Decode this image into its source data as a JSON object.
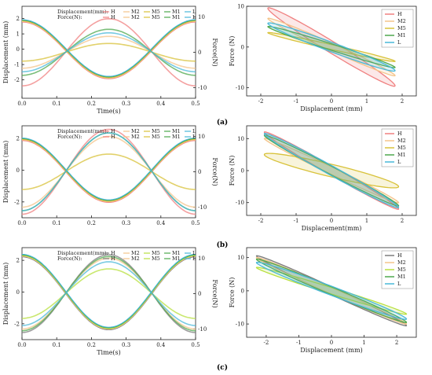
{
  "chart_data": [
    {
      "id": "a-time",
      "panel": "(a)",
      "type": "line",
      "xlabel": "Time(s)",
      "ylabel": "Displacement (mm)",
      "ylabel_right": "Force(N)",
      "xlim": [
        0,
        0.5
      ],
      "ylim": [
        -3.2,
        2.8
      ],
      "ylim_right": [
        -13,
        13
      ],
      "xticks": [
        "0.0",
        "0.1",
        "0.2",
        "0.3",
        "0.4",
        "0.5"
      ],
      "yticks": [
        "-2",
        "-1",
        "0",
        "1",
        "2"
      ],
      "yticks_right": [
        "-10",
        "0",
        "10"
      ],
      "legend": {
        "displacement_label": "Displacement(mm):",
        "force_label": "Force(N):",
        "names": [
          "H",
          "M2",
          "M5",
          "M1",
          "L"
        ]
      },
      "displacement_amplitude_mm": [
        1.85,
        1.85,
        1.85,
        1.85,
        1.85
      ],
      "force_amplitude_N": [
        9.5,
        4.5,
        2.5,
        6.5,
        5.5
      ],
      "series_colors": [
        "#f08080",
        "#f4c48a",
        "#d8c23a",
        "#4ea84e",
        "#49b8d8"
      ]
    },
    {
      "id": "a-hyst",
      "panel": "(a)",
      "type": "scatter",
      "xlabel": "Displacement (mm)",
      "ylabel": "Force (N)",
      "xlim": [
        -2.4,
        2.4
      ],
      "ylim": [
        -12,
        10
      ],
      "xticks": [
        "-2",
        "-1",
        "0",
        "1",
        "2"
      ],
      "yticks": [
        "-10",
        "0",
        "10"
      ],
      "legend": [
        "H",
        "M2",
        "M5",
        "M1",
        "L"
      ],
      "loop_amplitude_x_mm": [
        1.8,
        1.8,
        1.8,
        1.8,
        1.8
      ],
      "loop_amplitude_y_N": [
        9.5,
        7,
        3.5,
        5,
        5.8
      ],
      "loop_width_N": [
        1.6,
        1.0,
        0.6,
        0.8,
        1.2
      ],
      "series_colors": [
        "#f08080",
        "#f4c48a",
        "#d8c23a",
        "#4ea84e",
        "#49b8d8"
      ]
    },
    {
      "id": "b-time",
      "panel": "(b)",
      "type": "line",
      "xlabel": "",
      "ylabel": "Displacement (mm)",
      "ylabel_right": "Force(N)",
      "xlim": [
        0,
        0.5
      ],
      "ylim": [
        -3.0,
        2.8
      ],
      "ylim_right": [
        -13,
        13
      ],
      "xticks": [
        "0.0",
        "0.1",
        "0.2",
        "0.3",
        "0.4",
        "0.5"
      ],
      "yticks": [
        "-2",
        "0",
        "2"
      ],
      "yticks_right": [
        "-10",
        "0",
        "10"
      ],
      "legend": {
        "displacement_label": "Displacement(mm):",
        "force_label": "Force(N):",
        "names": [
          "H",
          "M2",
          "M5",
          "M1",
          "L"
        ]
      },
      "displacement_amplitude_mm": [
        1.95,
        1.95,
        1.95,
        1.95,
        1.95
      ],
      "force_amplitude_N": [
        12,
        10,
        5,
        11,
        11
      ],
      "series_colors": [
        "#f08080",
        "#f4c48a",
        "#d8c23a",
        "#4ea84e",
        "#49b8d8"
      ]
    },
    {
      "id": "b-hyst",
      "panel": "(b)",
      "type": "scatter",
      "xlabel": "Displacement(mm)",
      "ylabel": "Force (N)",
      "xlim": [
        -2.4,
        2.4
      ],
      "ylim": [
        -14,
        14
      ],
      "xticks": [
        "-2",
        "-1",
        "0",
        "1",
        "2"
      ],
      "yticks": [
        "-10",
        "0",
        "10"
      ],
      "legend": [
        "H",
        "M2",
        "M5",
        "M1",
        "L"
      ],
      "loop_amplitude_x_mm": [
        1.9,
        1.9,
        1.9,
        1.9,
        1.9
      ],
      "loop_amplitude_y_N": [
        12,
        10,
        5,
        11,
        11.5
      ],
      "loop_width_N": [
        1.5,
        1.2,
        2.0,
        1.4,
        1.6
      ],
      "series_colors": [
        "#f08080",
        "#f4c48a",
        "#d8c23a",
        "#4ea84e",
        "#49b8d8"
      ]
    },
    {
      "id": "c-time",
      "panel": "(c)",
      "type": "line",
      "xlabel": "Time(s)",
      "ylabel": "Displacement (mm)",
      "ylabel_right": "Force(N)",
      "xlim": [
        0,
        0.5
      ],
      "ylim": [
        -3.0,
        2.8
      ],
      "ylim_right": [
        -13,
        13
      ],
      "xticks": [
        "0.0",
        "0.1",
        "0.2",
        "0.3",
        "0.4",
        "0.5"
      ],
      "yticks": [
        "-2",
        "0",
        "2"
      ],
      "yticks_right": [
        "-10",
        "0",
        "10"
      ],
      "legend": {
        "displacement_label": "Displacement(mm):",
        "force_label": "Force(N):",
        "names": [
          "H",
          "M2",
          "M5",
          "M1",
          "L"
        ]
      },
      "displacement_amplitude_mm": [
        2.3,
        2.3,
        2.3,
        2.3,
        2.3
      ],
      "force_amplitude_N": [
        11,
        10,
        7,
        10.5,
        9
      ],
      "series_colors": [
        "#7c7c7c",
        "#f4c48a",
        "#b8e040",
        "#4ea84e",
        "#49b8d8"
      ]
    },
    {
      "id": "c-hyst",
      "panel": "(c)",
      "type": "scatter",
      "xlabel": "Displacement (mm)",
      "ylabel": "Force (N)",
      "xlim": [
        -2.6,
        2.6
      ],
      "ylim": [
        -14,
        13
      ],
      "xticks": [
        "-2",
        "-1",
        "0",
        "1",
        "2"
      ],
      "yticks": [
        "-10",
        "0",
        "10"
      ],
      "legend": [
        "H",
        "M2",
        "M5",
        "M1",
        "L"
      ],
      "loop_amplitude_x_mm": [
        2.3,
        2.3,
        2.3,
        2.3,
        2.3
      ],
      "loop_amplitude_y_N": [
        10.5,
        10,
        7,
        9.5,
        8.5
      ],
      "loop_width_N": [
        1.2,
        1.0,
        1.0,
        1.2,
        1.4
      ],
      "series_colors": [
        "#7c7c7c",
        "#f4c48a",
        "#b8e040",
        "#4ea84e",
        "#49b8d8"
      ]
    }
  ],
  "panel_labels": [
    "(a)",
    "(b)",
    "(c)"
  ]
}
